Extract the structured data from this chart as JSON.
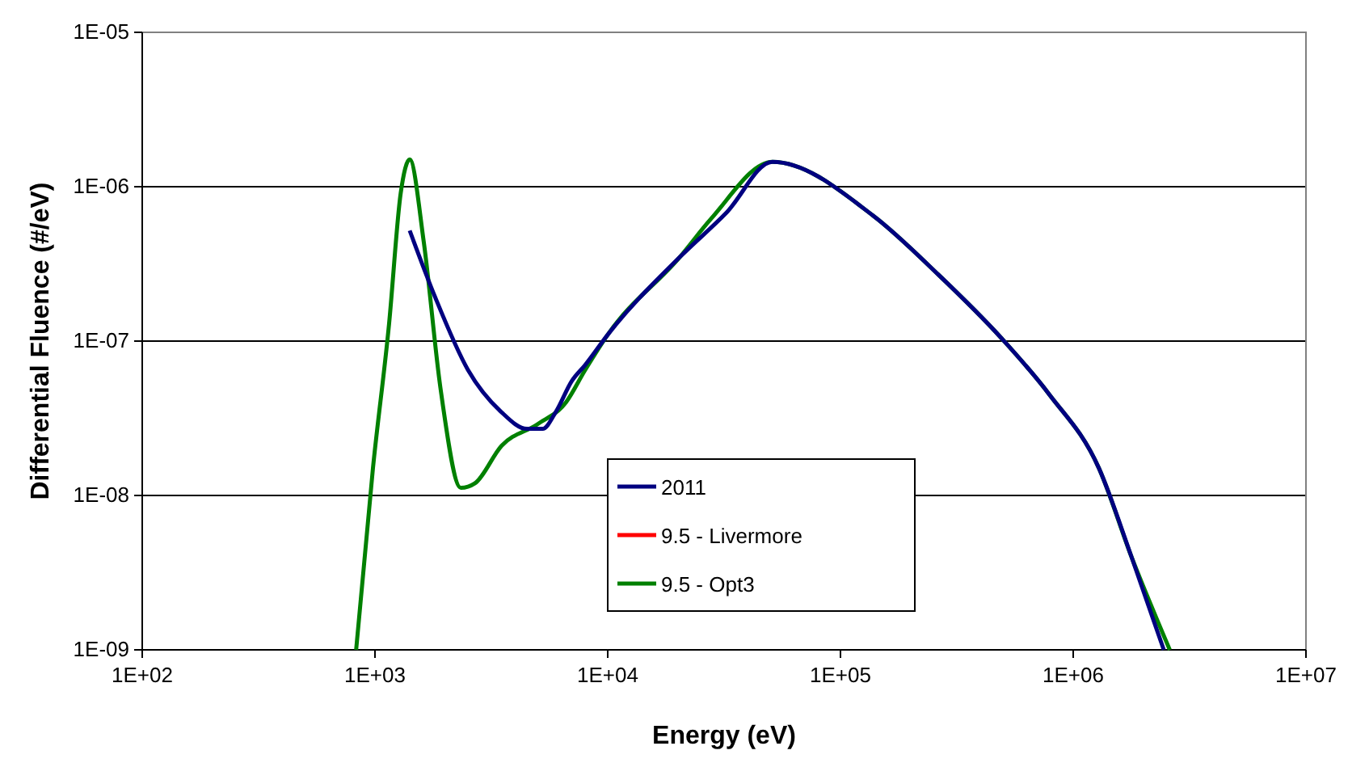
{
  "chart_data": {
    "type": "line",
    "xlabel": "Energy (eV)",
    "ylabel": "Differential Fluence (#/eV)",
    "log": "xy",
    "grid": "y",
    "legend": "bottom",
    "marker": "none",
    "line_style": "solid",
    "xlim": [
      100,
      10000000
    ],
    "xticks": [
      {
        "value": 100,
        "label": "1E+02"
      },
      {
        "value": 1000,
        "label": "1E+03"
      },
      {
        "value": 10000,
        "label": "1E+04"
      },
      {
        "value": 100000,
        "label": "1E+05"
      },
      {
        "value": 1000000,
        "label": "1E+06"
      },
      {
        "value": 10000000,
        "label": "1E+07"
      }
    ],
    "ylim": [
      1e-09,
      1e-05
    ],
    "yticks": [
      {
        "value": 1e-09,
        "label": "1E-09"
      },
      {
        "value": 1e-08,
        "label": "1E-08"
      },
      {
        "value": 1e-07,
        "label": "1E-07"
      },
      {
        "value": 1e-06,
        "label": "1E-06"
      },
      {
        "value": 1e-05,
        "label": "1E-05"
      }
    ],
    "series": [
      {
        "name": "2011",
        "color": "#000080",
        "x": [
          1410,
          1820,
          2510,
          3470,
          4500,
          5250,
          6000,
          7000,
          8000,
          10000,
          20400,
          32400,
          51000,
          138000,
          263000,
          490000,
          790000,
          1290000,
          1780000,
          2450000
        ],
        "values": [
          5.2e-07,
          1.9e-07,
          6.5e-08,
          3.5e-08,
          2.7e-08,
          2.7e-08,
          3.5e-08,
          5.5e-08,
          7e-08,
          1.1e-07,
          3.5e-07,
          6.8e-07,
          1.45e-06,
          6.5e-07,
          2.7e-07,
          1.05e-07,
          4.5e-08,
          1.5e-08,
          4e-09,
          1e-09
        ]
      },
      {
        "name": "9.5  - Livermore",
        "color": "#ff0000"
      },
      {
        "name": "9.5  - Opt3",
        "color": "#008000",
        "x": [
          830,
          980,
          1150,
          1290,
          1410,
          1620,
          1910,
          2340,
          2690,
          3500,
          5000,
          6610,
          8000,
          10000,
          20400,
          27800,
          51000,
          138000,
          263000,
          490000,
          790000,
          1290000,
          1780000,
          2600000
        ],
        "values": [
          1e-09,
          1.5e-08,
          1.3e-07,
          9.1e-07,
          1.5e-06,
          4.4e-07,
          5e-08,
          1.12e-08,
          1.2e-08,
          2.1e-08,
          2.9e-08,
          4e-08,
          6.5e-08,
          1.1e-07,
          3.5e-07,
          6.2e-07,
          1.45e-06,
          6.5e-07,
          2.7e-07,
          1.05e-07,
          4.5e-08,
          1.5e-08,
          4e-09,
          1e-09
        ]
      }
    ]
  }
}
